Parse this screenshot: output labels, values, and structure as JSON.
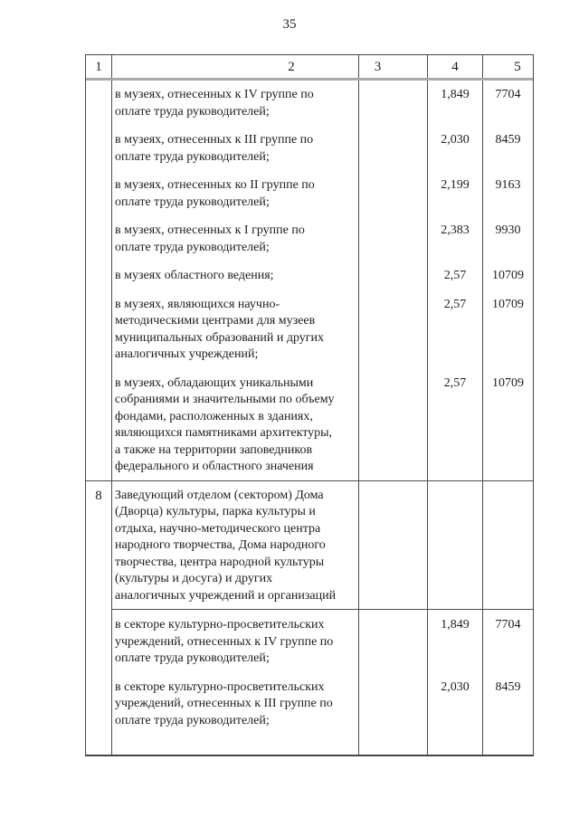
{
  "page_number": "35",
  "colors": {
    "text": "#1c1c1c",
    "table_border": "#4d4d4d",
    "header_rule": "#a9a9a9"
  },
  "table": {
    "headers": [
      "1",
      "2",
      "3",
      "4",
      "5"
    ],
    "continuation_rows": [
      {
        "text": "в музеях, отнесенных к IV группе по\nоплате труда руководителей;",
        "coef": "1,849",
        "salary": "7704"
      },
      {
        "text": "в музеях, отнесенных к III группе по\nоплате труда руководителей;",
        "coef": "2,030",
        "salary": "8459"
      },
      {
        "text": "в музеях, отнесенных ко II группе по\nоплате труда руководителей;",
        "coef": "2,199",
        "salary": "9163"
      },
      {
        "text": "в музеях, отнесенных к I группе по\nоплате труда руководителей;",
        "coef": "2,383",
        "salary": "9930"
      },
      {
        "text": "в музеях областного ведения;",
        "coef": "2,57",
        "salary": "10709"
      },
      {
        "text": "в музеях, являющихся научно-\nметодическими центрами для музеев\nмуниципальных образований и других\nаналогичных учреждений;",
        "coef": "2,57",
        "salary": "10709"
      },
      {
        "text": "в музеях, обладающих уникальными\nсобраниями и значительными по объему\nфондами, расположенных в зданиях,\nявляющихся памятниками архитектуры,\nа также на территории заповедников\nфедерального и областного значения",
        "coef": "2,57",
        "salary": "10709"
      }
    ],
    "row8": {
      "num": "8",
      "title": "Заведующий отделом (сектором) Дома\n(Дворца) культуры, парка культуры и\nотдыха, научно-методического центра\nнародного творчества, Дома народного\nтворчества, центра народной культуры\n(культуры и досуга) и других\nаналогичных учреждений и организаций",
      "sub_rows": [
        {
          "text": "в секторе культурно-просветительских\nучреждений, отнесенных к IV группе по\nоплате труда руководителей;",
          "coef": "1,849",
          "salary": "7704"
        },
        {
          "text": "в секторе культурно-просветительских\nучреждений, отнесенных к III группе по\nоплате труда руководителей;",
          "coef": "2,030",
          "salary": "8459"
        }
      ]
    }
  }
}
